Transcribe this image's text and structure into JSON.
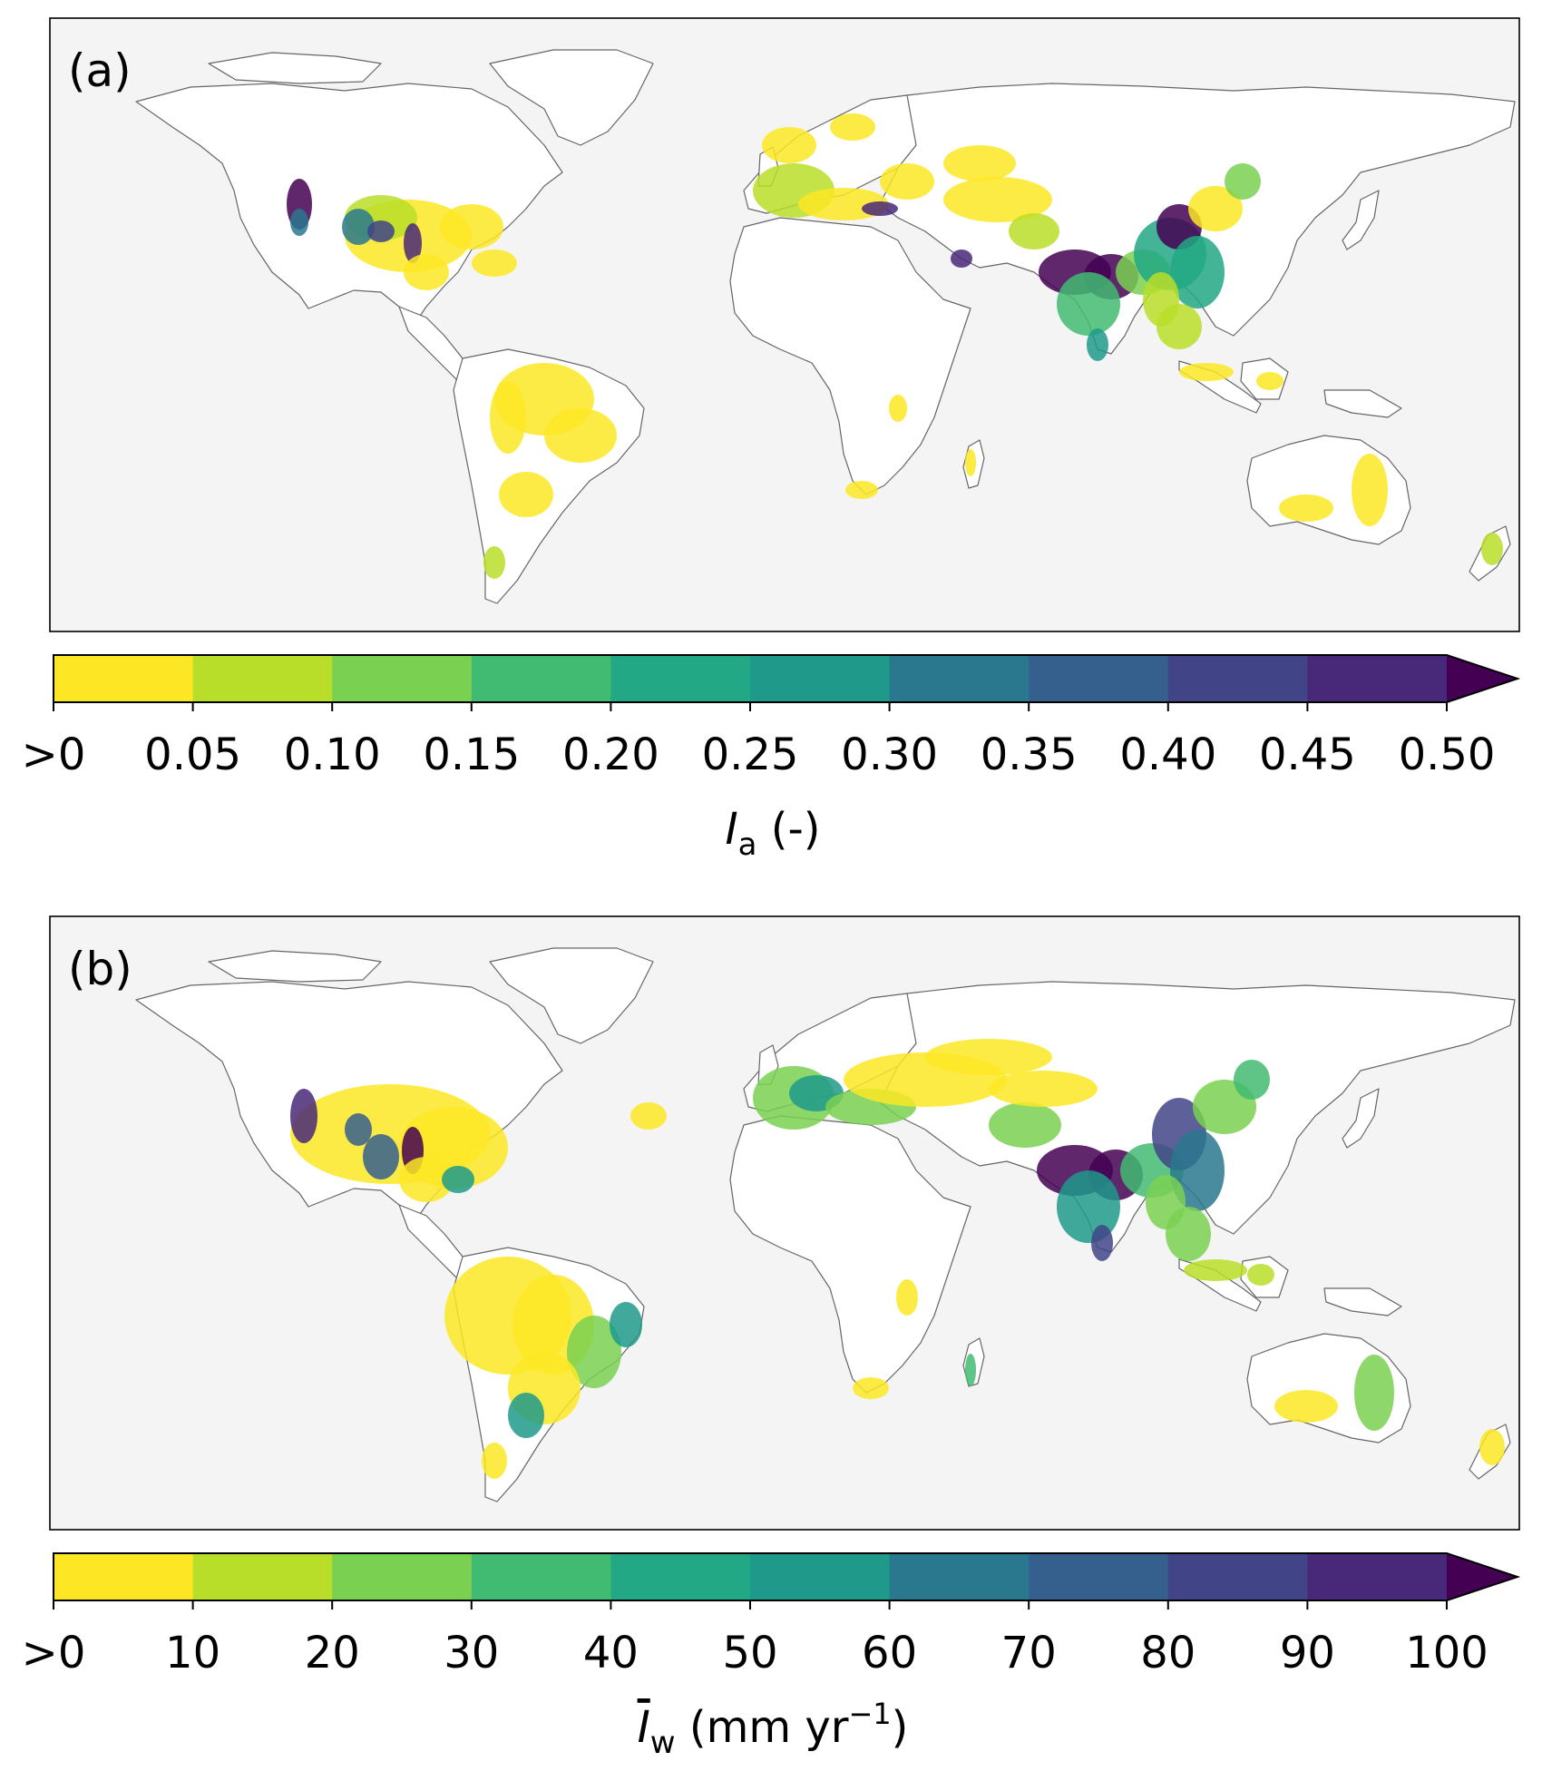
{
  "panels": [
    {
      "id": "a",
      "label": "(a)",
      "colorbar": {
        "tick_labels": [
          ">0",
          "0.05",
          "0.10",
          "0.15",
          "0.20",
          "0.25",
          "0.30",
          "0.35",
          "0.40",
          "0.45",
          "0.50"
        ],
        "title_main": "I",
        "title_sub": "a",
        "title_rest": " (-)",
        "extend": "max"
      }
    },
    {
      "id": "b",
      "label": "(b)",
      "colorbar": {
        "tick_labels": [
          ">0",
          "10",
          "20",
          "30",
          "40",
          "50",
          "60",
          "70",
          "80",
          "90",
          "100"
        ],
        "title_main": "I",
        "title_sub": "w",
        "title_rest": " (mm yr",
        "title_sup": "−1",
        "title_close": ")",
        "title_overline": true,
        "extend": "max"
      }
    }
  ],
  "colormap": {
    "name": "viridis_r",
    "bins": [
      "#fde725",
      "#b8de29",
      "#7ad151",
      "#42bb72",
      "#22a884",
      "#1f9a8a",
      "#2a788e",
      "#355f8d",
      "#414487",
      "#482878",
      "#440154"
    ],
    "background_ocean": "#f4f4f4",
    "land_no_data": "#ffffff"
  }
}
